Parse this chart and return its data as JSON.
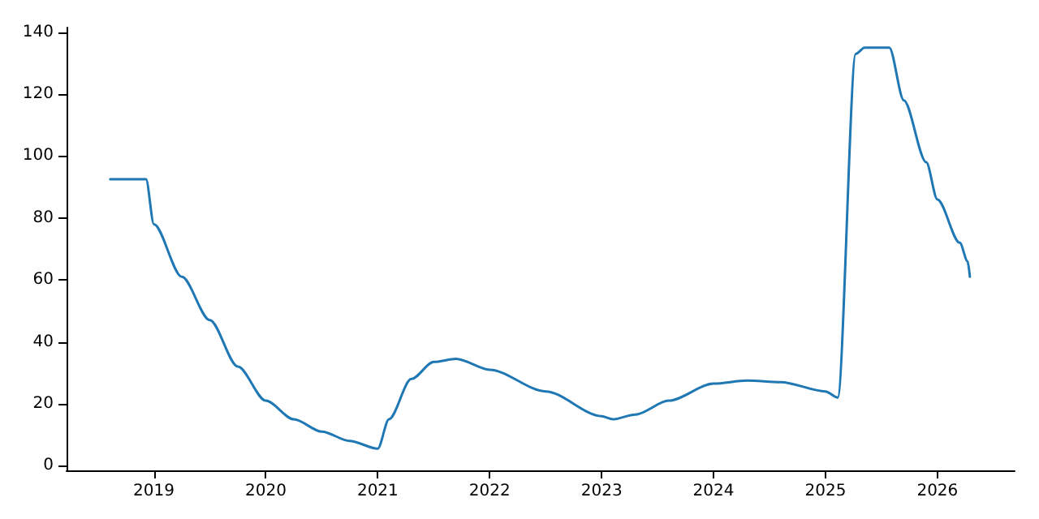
{
  "chart_data": {
    "type": "line",
    "xlim": [
      2018.22,
      2026.69
    ],
    "ylim": [
      -1.5,
      141.5
    ],
    "xticks": [
      2019,
      2020,
      2021,
      2022,
      2023,
      2024,
      2025,
      2026
    ],
    "yticks": [
      0,
      20,
      40,
      60,
      80,
      100,
      120,
      140
    ],
    "grid": false,
    "marker": "none",
    "series": [
      {
        "color": "#1f77b4",
        "x": [
          2018.61,
          2018.93,
          2019,
          2019.25,
          2019.5,
          2019.75,
          2020,
          2020.25,
          2020.5,
          2020.75,
          2021,
          2021.1,
          2021.3,
          2021.5,
          2021.7,
          2022,
          2022.5,
          2023,
          2023.1,
          2023.3,
          2023.6,
          2024,
          2024.3,
          2024.6,
          2025,
          2025.11,
          2025.27,
          2025.35,
          2025.57,
          2025.7,
          2025.9,
          2026,
          2026.2,
          2026.27,
          2026.29
        ],
        "values": [
          92.5,
          92.5,
          78,
          61,
          47,
          32,
          21,
          15,
          11,
          8,
          5.5,
          15,
          28,
          33.5,
          34.5,
          31,
          24,
          16,
          15,
          16.5,
          21,
          26.5,
          27.5,
          27,
          24,
          22,
          133,
          135,
          135,
          118,
          98,
          86,
          72,
          66,
          61
        ]
      }
    ]
  }
}
